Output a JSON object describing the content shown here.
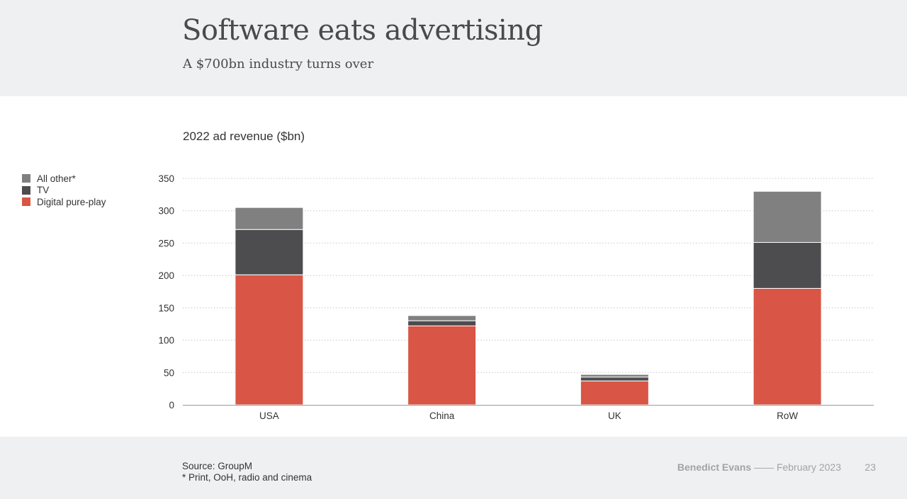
{
  "header": {
    "title": "Software eats advertising",
    "subtitle": "A $700bn industry turns over"
  },
  "chart_data": {
    "type": "bar",
    "stacked": true,
    "title": "2022 ad revenue ($bn)",
    "categories": [
      "USA",
      "China",
      "UK",
      "RoW"
    ],
    "series": [
      {
        "name": "Digital pure-play",
        "color": "#d95545",
        "values": [
          201,
          122,
          37,
          180
        ]
      },
      {
        "name": "TV",
        "color": "#4d4d4f",
        "values": [
          70,
          8,
          6,
          71
        ]
      },
      {
        "name": "All other*",
        "color": "#808080",
        "values": [
          34,
          8,
          4,
          79
        ]
      }
    ],
    "ylim": [
      0,
      350
    ],
    "yticks": [
      "0",
      "50",
      "100",
      "150",
      "200",
      "250",
      "300",
      "350"
    ],
    "grid": true,
    "legend_position": "left",
    "legend_order": [
      "All other*",
      "TV",
      "Digital pure-play"
    ]
  },
  "legend": {
    "items": [
      {
        "label": "All other*",
        "color": "#808080"
      },
      {
        "label": "TV",
        "color": "#4d4d4f"
      },
      {
        "label": "Digital pure-play",
        "color": "#d95545"
      }
    ]
  },
  "footer": {
    "source_line": "Source: GroupM",
    "note_line": "* Print, OoH, radio and cinema",
    "author": "Benedict Evans",
    "separator": "——",
    "date": "February 2023",
    "page_number": "23"
  }
}
